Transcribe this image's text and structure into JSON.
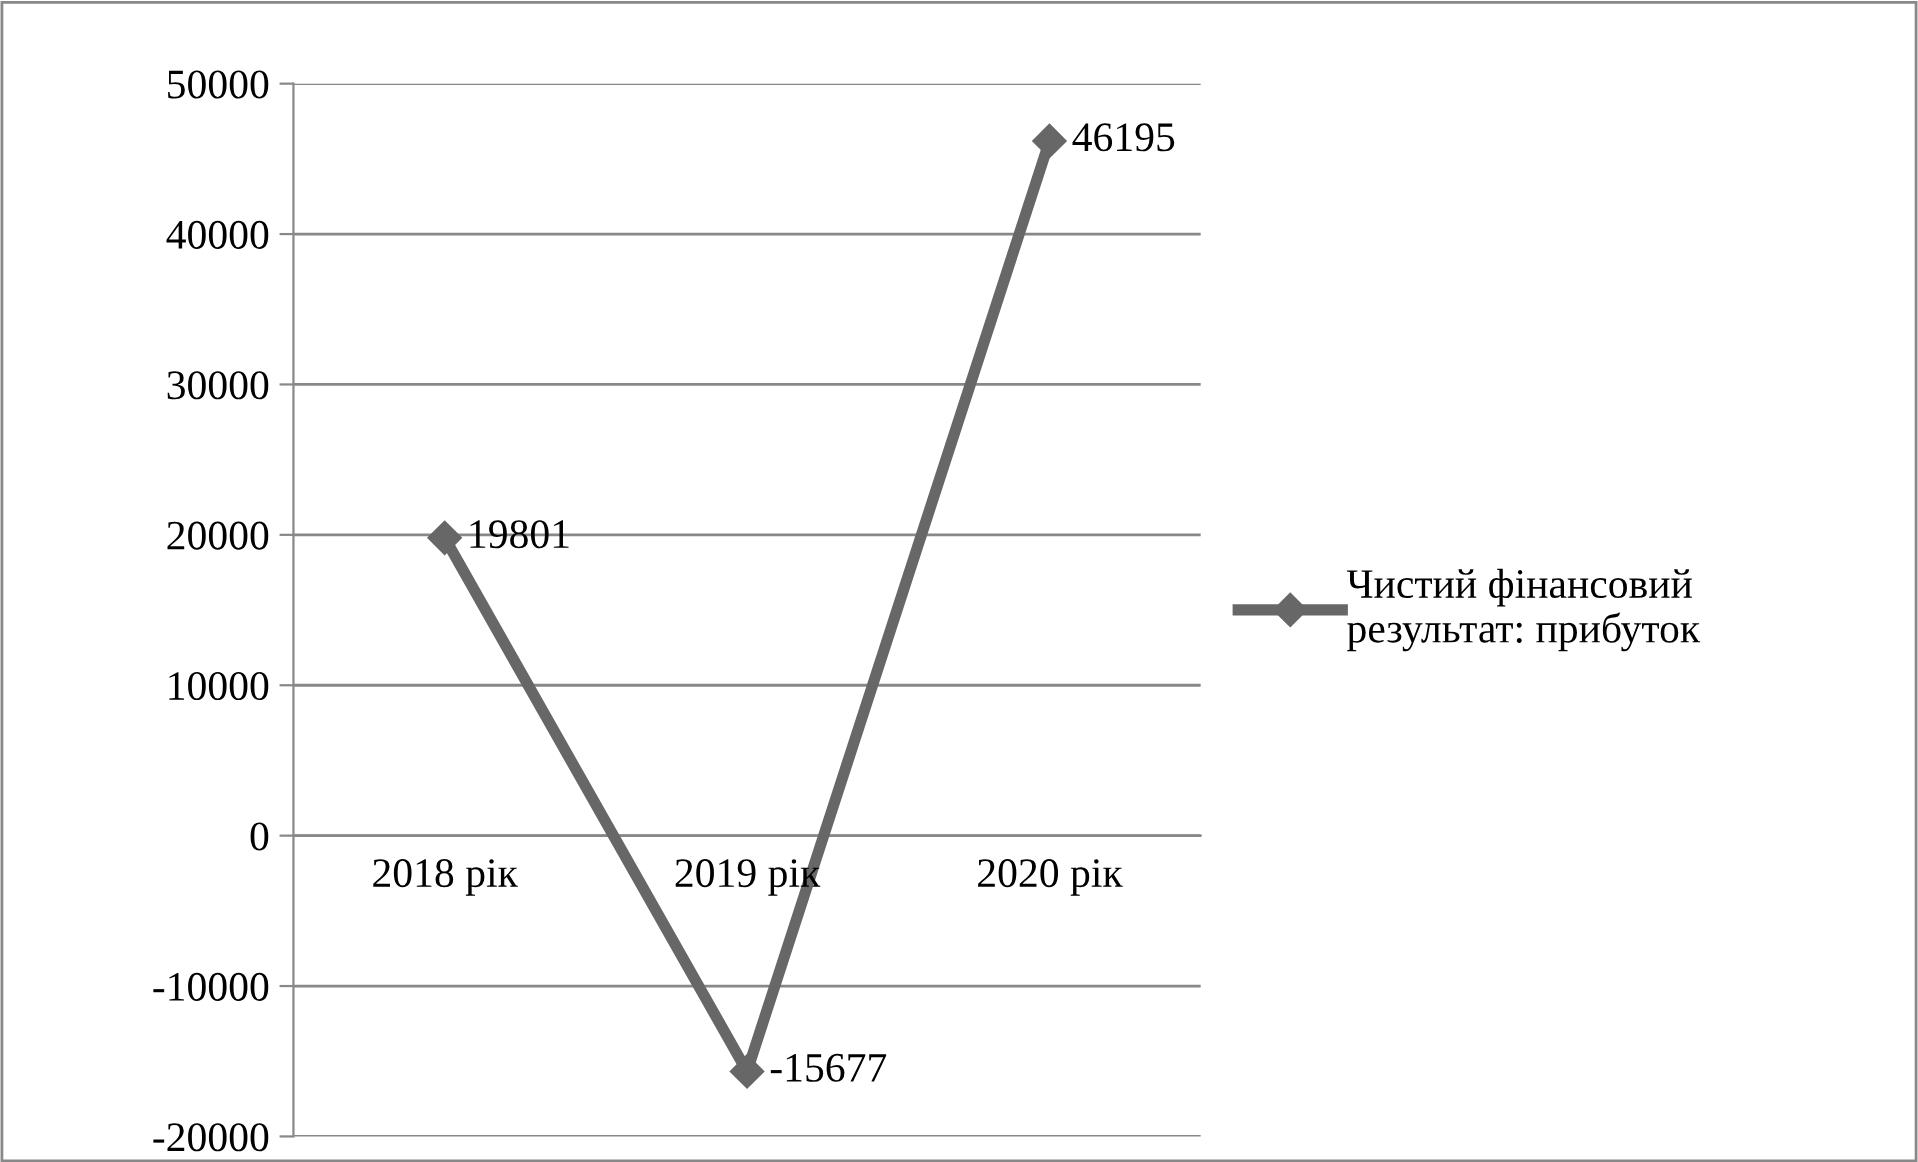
{
  "chart_data": {
    "type": "line",
    "categories": [
      "2018 рік",
      "2019 рік",
      "2020 рік"
    ],
    "series": [
      {
        "name": "Чистий фінансовий\nрезультат: прибуток",
        "color": "#676767",
        "values": [
          19801,
          -15677,
          46195
        ]
      }
    ],
    "ylim": [
      -20000,
      50000
    ],
    "yticks": [
      -20000,
      -10000,
      0,
      10000,
      20000,
      30000,
      40000,
      50000
    ],
    "grid": "y",
    "legend": "right",
    "marker": "diamond",
    "line_style": "solid",
    "data_labels": true
  }
}
